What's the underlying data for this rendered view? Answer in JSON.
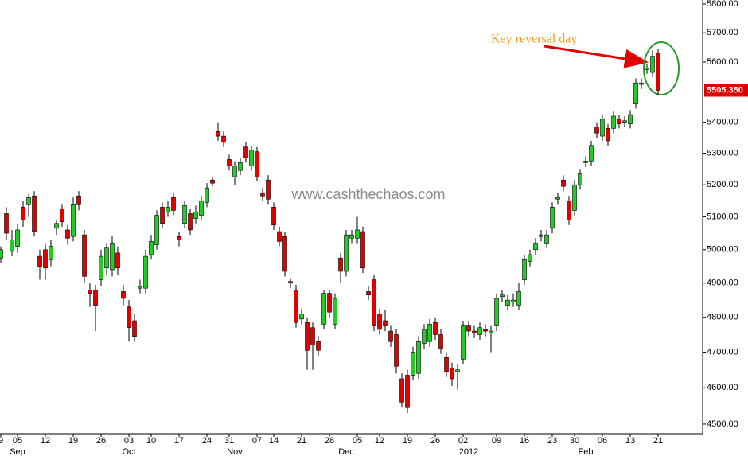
{
  "chart_data": {
    "type": "candlestick",
    "log_scale": true,
    "annotation": "Key reversal day",
    "watermark": "www.cashthechaos.com",
    "last_price": {
      "value": 5505.35,
      "label": "5505.350"
    },
    "up_color": "#22cc22",
    "down_color": "#e00000",
    "ylim": [
      4474,
      5814
    ],
    "yticks": [
      {
        "value": 4500,
        "label": "4500.00"
      },
      {
        "value": 4600,
        "label": "4600.00"
      },
      {
        "value": 4700,
        "label": "4700.00"
      },
      {
        "value": 4800,
        "label": "4800.00"
      },
      {
        "value": 4900,
        "label": "4900.00"
      },
      {
        "value": 5000,
        "label": "5000.00"
      },
      {
        "value": 5100,
        "label": "5100.00"
      },
      {
        "value": 5200,
        "label": "5200.00"
      },
      {
        "value": 5300,
        "label": "5300.00"
      },
      {
        "value": 5400,
        "label": "5400.00"
      },
      {
        "value": 5500,
        "label": "5500.00"
      },
      {
        "value": 5600,
        "label": "5600.00"
      },
      {
        "value": 5700,
        "label": "5700.00"
      },
      {
        "value": 5800,
        "label": "5800.00"
      }
    ],
    "categories": [
      "9",
      null,
      null,
      "05",
      null,
      null,
      null,
      null,
      "12",
      null,
      null,
      null,
      null,
      "19",
      null,
      null,
      null,
      null,
      "26",
      null,
      null,
      null,
      null,
      "03",
      null,
      null,
      null,
      "10",
      null,
      null,
      null,
      null,
      "17",
      null,
      null,
      null,
      null,
      "24",
      null,
      null,
      null,
      "31",
      null,
      null,
      null,
      null,
      "07",
      null,
      null,
      "14",
      null,
      null,
      null,
      null,
      "21",
      null,
      null,
      null,
      null,
      "28",
      null,
      null,
      null,
      null,
      "05",
      null,
      null,
      null,
      "12",
      null,
      null,
      null,
      null,
      "19",
      null,
      null,
      null,
      null,
      "26",
      null,
      null,
      null,
      null,
      "02",
      null,
      null,
      null,
      null,
      null,
      "09",
      null,
      null,
      null,
      null,
      "16",
      null,
      null,
      null,
      null,
      "23",
      null,
      null,
      null,
      "30",
      null,
      null,
      null,
      null,
      "06",
      null,
      null,
      null,
      null,
      "13",
      null,
      null,
      null,
      null,
      "21"
    ],
    "months": [
      null,
      null,
      null,
      "Sep",
      null,
      null,
      null,
      null,
      null,
      null,
      null,
      null,
      null,
      null,
      null,
      null,
      null,
      null,
      null,
      null,
      null,
      null,
      null,
      "Oct",
      null,
      null,
      null,
      null,
      null,
      null,
      null,
      null,
      null,
      null,
      null,
      null,
      null,
      null,
      null,
      null,
      null,
      null,
      "Nov",
      null,
      null,
      null,
      null,
      null,
      null,
      null,
      null,
      null,
      null,
      null,
      null,
      null,
      null,
      null,
      null,
      null,
      null,
      null,
      "Dec",
      null,
      null,
      null,
      null,
      null,
      null,
      null,
      null,
      null,
      null,
      null,
      null,
      null,
      null,
      null,
      null,
      null,
      null,
      null,
      null,
      null,
      "2012",
      null,
      null,
      null,
      null,
      null,
      null,
      null,
      null,
      null,
      null,
      null,
      null,
      null,
      null,
      null,
      null,
      null,
      null,
      null,
      null,
      "Feb",
      null,
      null,
      null,
      null,
      null,
      null,
      null,
      null,
      null,
      null,
      null,
      null,
      null
    ],
    "open": [
      4975,
      5110,
      4995,
      5010,
      5130,
      5140,
      5165,
      4980,
      5000,
      4970,
      5065,
      5125,
      5060,
      5040,
      5165,
      5045,
      4880,
      4880,
      4910,
      4945,
      4940,
      4990,
      4875,
      4830,
      4790,
      4885,
      4885,
      4985,
      5015,
      5130,
      5115,
      5160,
      5040,
      5080,
      5110,
      5095,
      5105,
      5145,
      5215,
      5370,
      5355,
      5280,
      5225,
      5245,
      5320,
      5260,
      5305,
      5175,
      5215,
      5130,
      5055,
      5040,
      4905,
      4880,
      4795,
      4785,
      4770,
      4730,
      4780,
      4870,
      4780,
      4975,
      4935,
      5035,
      5035,
      5055,
      4875,
      4910,
      4810,
      4790,
      4760,
      4750,
      4625,
      4635,
      4635,
      4640,
      4725,
      4730,
      4785,
      4750,
      4685,
      4655,
      4645,
      4680,
      4775,
      4760,
      4750,
      4765,
      4755,
      4775,
      4860,
      4835,
      4845,
      4835,
      4910,
      4965,
      5000,
      5040,
      5020,
      5065,
      5155,
      5215,
      5150,
      5120,
      5200,
      5270,
      5275,
      5385,
      5355,
      5380,
      5380,
      5410,
      5400,
      5395,
      5460,
      5525,
      5575,
      5565,
      5630
    ],
    "close": [
      5000,
      5050,
      5030,
      5060,
      5090,
      5160,
      5055,
      4950,
      4945,
      5010,
      5080,
      5085,
      5035,
      5140,
      5140,
      4920,
      4870,
      4835,
      4980,
      5005,
      5020,
      4945,
      4855,
      4770,
      4745,
      4890,
      4980,
      5025,
      5105,
      5080,
      5130,
      5120,
      5030,
      5135,
      5060,
      5115,
      5150,
      5190,
      5205,
      5355,
      5335,
      5260,
      5260,
      5270,
      5285,
      5310,
      5225,
      5165,
      5155,
      5075,
      5025,
      4935,
      4900,
      4785,
      4810,
      4705,
      4720,
      4705,
      4870,
      4815,
      4855,
      4935,
      5045,
      5045,
      5060,
      4945,
      4865,
      4775,
      4765,
      4775,
      4730,
      4660,
      4560,
      4545,
      4700,
      4730,
      4765,
      4780,
      4750,
      4710,
      4645,
      4625,
      4650,
      4775,
      4760,
      4755,
      4770,
      4760,
      4760,
      4855,
      4865,
      4850,
      4850,
      4875,
      4970,
      4985,
      5020,
      5045,
      5045,
      5130,
      5160,
      5195,
      5090,
      5200,
      5235,
      5275,
      5325,
      5365,
      5410,
      5340,
      5420,
      5395,
      5405,
      5425,
      5530,
      5530,
      5580,
      5620,
      5505.35
    ],
    "high": [
      5010,
      5130,
      5060,
      5080,
      5150,
      5170,
      5180,
      5000,
      5020,
      5030,
      5090,
      5140,
      5075,
      5160,
      5180,
      5060,
      4900,
      4895,
      5000,
      5020,
      5040,
      5010,
      4895,
      4850,
      4810,
      4910,
      5000,
      5045,
      5120,
      5145,
      5150,
      5175,
      5055,
      5150,
      5125,
      5135,
      5165,
      5205,
      5225,
      5400,
      5370,
      5295,
      5275,
      5285,
      5335,
      5325,
      5320,
      5190,
      5230,
      5145,
      5070,
      5055,
      4915,
      4895,
      4825,
      4800,
      4785,
      4745,
      4880,
      4880,
      4870,
      4990,
      5060,
      5060,
      5100,
      5070,
      4890,
      4925,
      4825,
      4820,
      4775,
      4765,
      4640,
      4650,
      4715,
      4745,
      4780,
      4795,
      4800,
      4765,
      4700,
      4670,
      4665,
      4790,
      4790,
      4775,
      4785,
      4780,
      4775,
      4870,
      4880,
      4865,
      4870,
      4900,
      4985,
      5000,
      5035,
      5060,
      5060,
      5145,
      5175,
      5230,
      5165,
      5215,
      5250,
      5290,
      5340,
      5400,
      5425,
      5395,
      5435,
      5425,
      5420,
      5440,
      5545,
      5545,
      5595,
      5640,
      5645
    ],
    "low": [
      4960,
      5030,
      4980,
      4990,
      5070,
      5100,
      5040,
      4910,
      4910,
      4950,
      5045,
      5070,
      5015,
      5025,
      5120,
      4900,
      4830,
      4760,
      4890,
      4925,
      4920,
      4925,
      4835,
      4730,
      4730,
      4870,
      4870,
      4970,
      5000,
      5065,
      5100,
      5105,
      5010,
      5065,
      5045,
      5080,
      5090,
      5130,
      5195,
      5340,
      5320,
      5245,
      5200,
      5230,
      5270,
      5245,
      5210,
      5150,
      5140,
      5060,
      5010,
      4920,
      4885,
      4770,
      4780,
      4650,
      4650,
      4690,
      4765,
      4800,
      4765,
      4900,
      4920,
      5020,
      5020,
      4930,
      4850,
      4760,
      4750,
      4760,
      4715,
      4640,
      4545,
      4530,
      4620,
      4625,
      4710,
      4715,
      4735,
      4695,
      4630,
      4605,
      4595,
      4665,
      4745,
      4740,
      4735,
      4745,
      4700,
      4760,
      4845,
      4820,
      4830,
      4820,
      4895,
      4950,
      4985,
      5025,
      5005,
      5050,
      5140,
      5180,
      5075,
      5105,
      5185,
      5255,
      5260,
      5350,
      5340,
      5325,
      5365,
      5380,
      5385,
      5380,
      5445,
      5510,
      5560,
      5550,
      5490
    ]
  }
}
